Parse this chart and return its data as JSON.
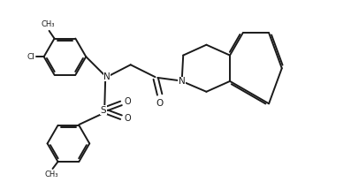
{
  "bg_color": "#ffffff",
  "line_color": "#1a1a1a",
  "line_width": 1.4,
  "figsize": [
    3.97,
    2.06
  ],
  "dpi": 100,
  "xlim": [
    0,
    10
  ],
  "ylim": [
    0,
    5.2
  ]
}
